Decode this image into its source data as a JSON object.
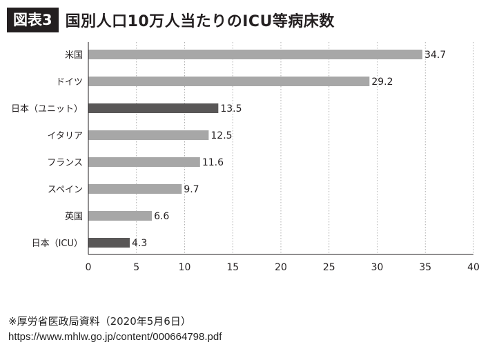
{
  "header": {
    "badge": "図表3",
    "title": "国別人口10万人当たりのICU等病床数"
  },
  "chart_data": {
    "type": "bar",
    "orientation": "horizontal",
    "categories": [
      "米国",
      "ドイツ",
      "日本（ユニット）",
      "イタリア",
      "フランス",
      "スペイン",
      "英国",
      "日本（ICU）"
    ],
    "values": [
      34.7,
      29.2,
      13.5,
      12.5,
      11.6,
      9.7,
      6.6,
      4.3
    ],
    "value_labels": [
      "34.7",
      "29.2",
      "13.5",
      "12.5",
      "11.6",
      "9.7",
      "6.6",
      "4.3"
    ],
    "highlight": [
      false,
      false,
      true,
      false,
      false,
      false,
      false,
      true
    ],
    "xlim": [
      0,
      40
    ],
    "xticks": [
      "0",
      "5",
      "10",
      "15",
      "20",
      "25",
      "30",
      "35",
      "40"
    ],
    "grid": "vertical dotted",
    "colors": {
      "bar": "#a7a7a7",
      "highlight": "#595757",
      "text": "#231f20"
    }
  },
  "footer": {
    "note": "※厚労省医政局資料（2020年5月6日）",
    "url": "https://www.mhlw.go.jp/content/000664798.pdf"
  }
}
